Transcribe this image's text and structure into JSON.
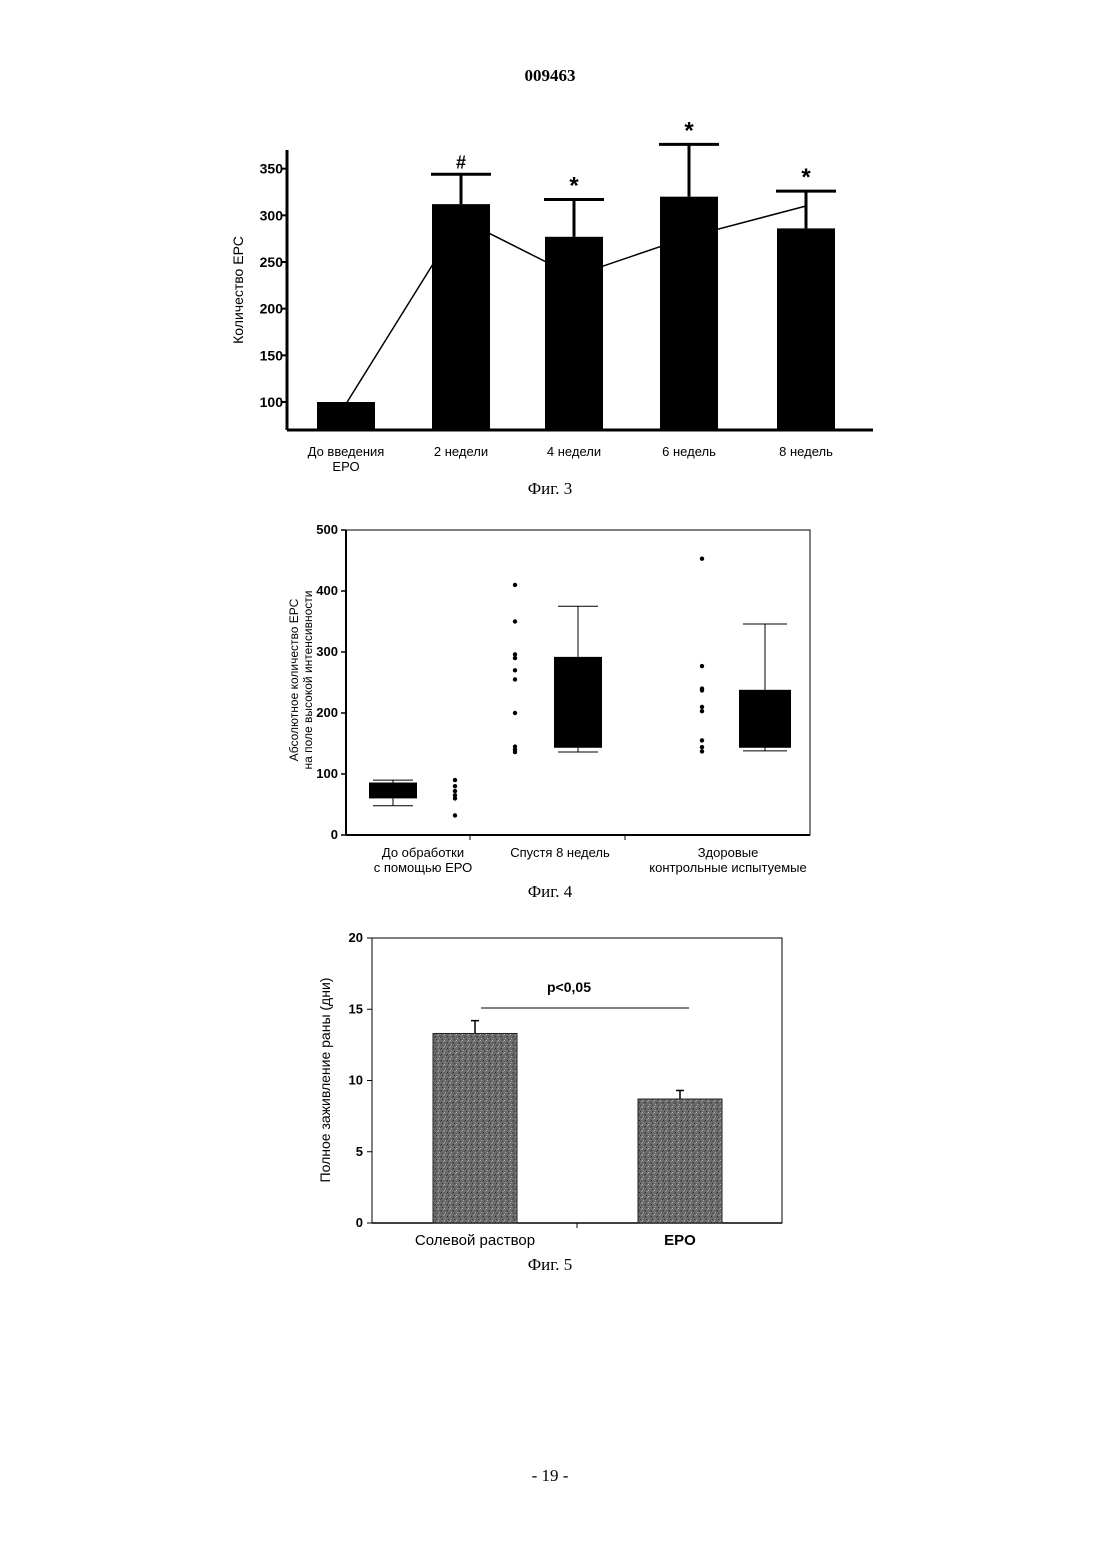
{
  "header": {
    "patent_number": "009463"
  },
  "footer": {
    "page_number": "- 19 -"
  },
  "chart_data": [
    {
      "type": "bar",
      "caption": "Фиг. 3",
      "ylabel": "Количество ЕРС",
      "categories": [
        "До введения ЕРО",
        "2 недели",
        "4 недели",
        "6 недель",
        "8 недель"
      ],
      "category_lines": [
        [
          "До введения",
          "ЕРО"
        ],
        [
          "2 недели"
        ],
        [
          "4 недели"
        ],
        [
          "6 недель"
        ],
        [
          "8 недель"
        ]
      ],
      "yticks": [
        100,
        150,
        200,
        250,
        300,
        350
      ],
      "ylim": [
        70,
        370
      ],
      "series": [
        {
          "values": [
            100,
            312,
            277,
            320,
            286
          ],
          "errors": [
            0,
            32,
            40,
            56,
            40
          ]
        },
        {
          "type": "line",
          "values": [
            98,
            296,
            235,
            277,
            310
          ]
        }
      ],
      "annotations": [
        "",
        "#",
        "*",
        "*",
        "*"
      ]
    },
    {
      "type": "box",
      "caption": "Фиг. 4",
      "ylabel_lines": [
        "Абсолютное количество ЕРС",
        "на поле высокой интенсивности"
      ],
      "categories": [
        "До обработки с помощью ЕРО",
        "Спустя 8 недель",
        "Здоровые контрольные испытуемые"
      ],
      "category_lines": [
        [
          "До обработки",
          "с помощью ЕРО"
        ],
        [
          "Спустя 8 недель"
        ],
        [
          "Здоровые",
          "контрольные испытуемые"
        ]
      ],
      "yticks": [
        0,
        100,
        200,
        300,
        400,
        500
      ],
      "ylim": [
        0,
        500
      ],
      "groups": [
        {
          "points": [
            90,
            80,
            72,
            65,
            60,
            32
          ],
          "box": {
            "min": 48,
            "q1": 60,
            "median": 60,
            "q3": 86,
            "max": 90
          }
        },
        {
          "points": [
            410,
            350,
            296,
            290,
            270,
            255,
            200,
            145,
            140,
            136
          ],
          "box": {
            "min": 136,
            "q1": 143,
            "median": 143,
            "q3": 292,
            "max": 375
          }
        },
        {
          "points": [
            453,
            277,
            240,
            237,
            210,
            203,
            155,
            144,
            137
          ],
          "box": {
            "min": 138,
            "q1": 143,
            "median": 143,
            "q3": 238,
            "max": 346
          }
        }
      ]
    },
    {
      "type": "bar",
      "caption": "Фиг. 5",
      "ylabel": "Полное заживление раны (дни)",
      "categories": [
        "Солевой раствор",
        "EPO"
      ],
      "yticks": [
        0,
        5,
        10,
        15,
        20
      ],
      "ylim": [
        0,
        20
      ],
      "values": [
        13.3,
        8.7
      ],
      "errors": [
        0.9,
        0.6
      ],
      "annotation": "p<0,05"
    }
  ]
}
